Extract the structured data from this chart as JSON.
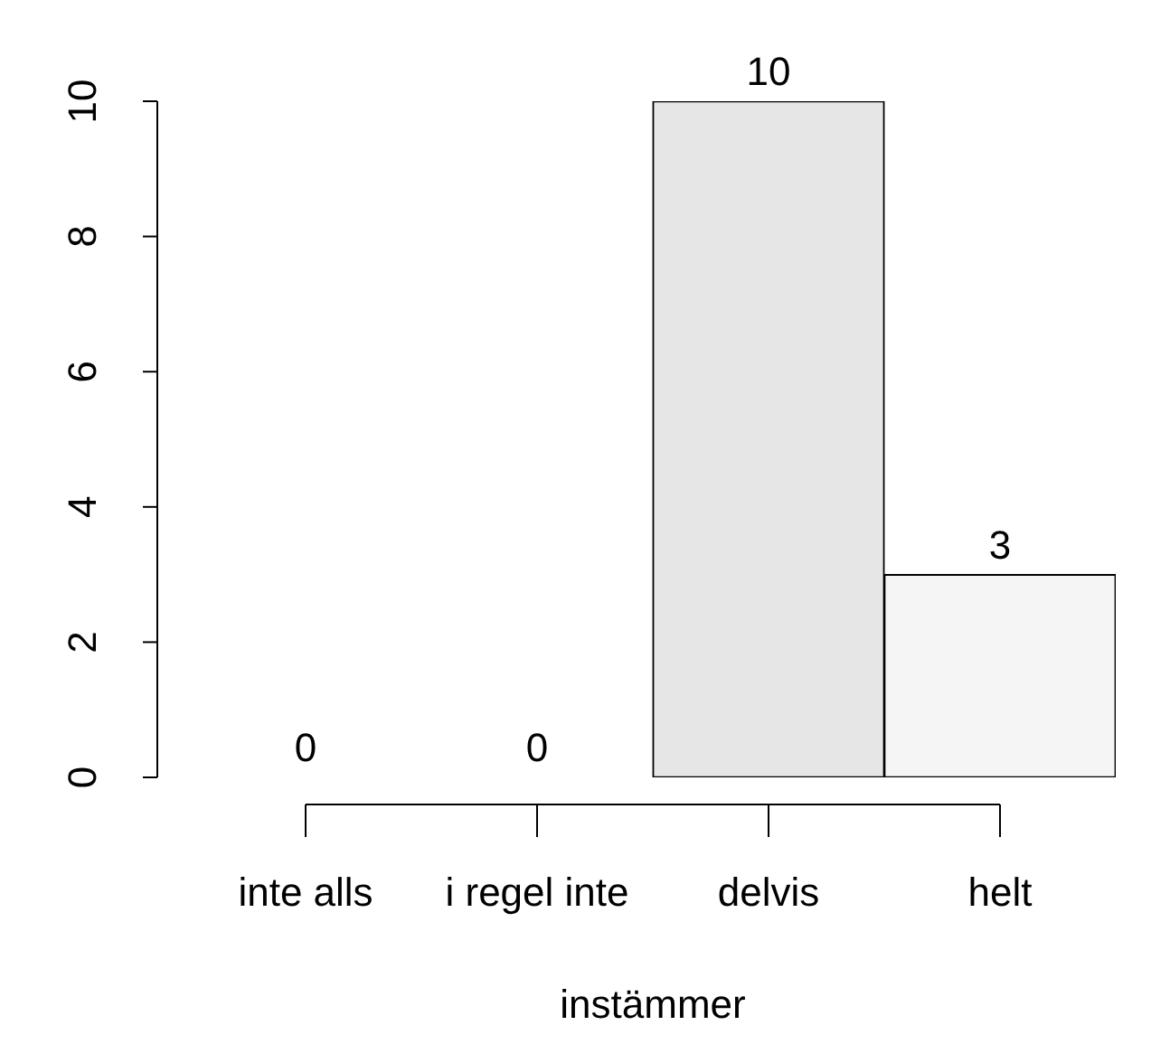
{
  "chart_data": {
    "type": "bar",
    "xlabel": "instämmer",
    "categories": [
      "inte alls",
      "i regel inte",
      "delvis",
      "helt"
    ],
    "values": [
      0,
      0,
      10,
      3
    ],
    "colors": [
      "#4d4d4d",
      "#aeaeae",
      "#e6e6e6",
      "#f5f5f5"
    ],
    "ylim": [
      0,
      10
    ],
    "yticks": [
      0,
      2,
      4,
      6,
      8,
      10
    ],
    "data_labels": true
  }
}
